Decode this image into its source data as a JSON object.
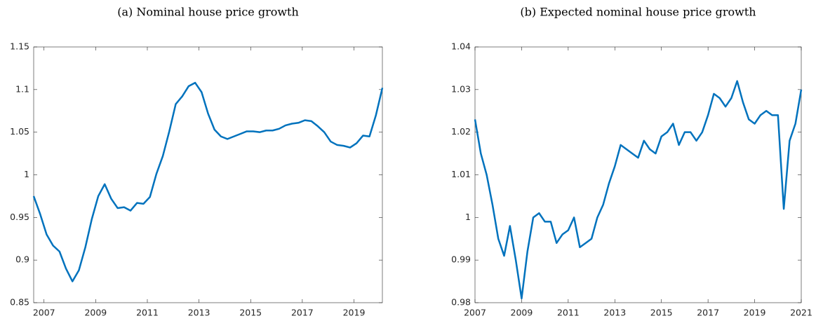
{
  "chart_data": [
    {
      "type": "line",
      "title": "(a) Nominal house price growth",
      "x": [
        2006.6,
        2006.85,
        2007.1,
        2007.35,
        2007.6,
        2007.85,
        2008.1,
        2008.35,
        2008.6,
        2008.85,
        2009.1,
        2009.35,
        2009.6,
        2009.85,
        2010.1,
        2010.35,
        2010.6,
        2010.85,
        2011.1,
        2011.35,
        2011.6,
        2011.85,
        2012.1,
        2012.35,
        2012.6,
        2012.85,
        2013.1,
        2013.35,
        2013.6,
        2013.85,
        2014.1,
        2014.35,
        2014.6,
        2014.85,
        2015.1,
        2015.35,
        2015.6,
        2015.85,
        2016.1,
        2016.35,
        2016.6,
        2016.85,
        2017.1,
        2017.35,
        2017.6,
        2017.85,
        2018.1,
        2018.35,
        2018.6,
        2018.85,
        2019.1,
        2019.35,
        2019.6,
        2019.85,
        2020.1
      ],
      "series": [
        {
          "color": "#0072bd",
          "values": [
            0.975,
            0.954,
            0.93,
            0.917,
            0.91,
            0.89,
            0.875,
            0.888,
            0.915,
            0.948,
            0.975,
            0.989,
            0.972,
            0.961,
            0.962,
            0.958,
            0.967,
            0.966,
            0.974,
            1.001,
            1.022,
            1.051,
            1.083,
            1.092,
            1.104,
            1.108,
            1.097,
            1.072,
            1.053,
            1.045,
            1.042,
            1.045,
            1.048,
            1.051,
            1.051,
            1.05,
            1.052,
            1.052,
            1.054,
            1.058,
            1.06,
            1.061,
            1.064,
            1.063,
            1.057,
            1.05,
            1.039,
            1.035,
            1.034,
            1.032,
            1.037,
            1.046,
            1.045,
            1.07,
            1.102
          ]
        }
      ],
      "xlim": [
        2006.6,
        2020.1
      ],
      "xticks": [
        2007,
        2009,
        2011,
        2013,
        2015,
        2017,
        2019
      ],
      "ylim": [
        0.85,
        1.15
      ],
      "yticks": [
        0.85,
        0.9,
        0.95,
        1,
        1.05,
        1.1,
        1.15
      ]
    },
    {
      "type": "line",
      "title": "(b) Expected nominal house price growth",
      "x": [
        2007,
        2007.25,
        2007.5,
        2007.75,
        2008,
        2008.25,
        2008.5,
        2008.75,
        2009,
        2009.25,
        2009.5,
        2009.75,
        2010,
        2010.25,
        2010.5,
        2010.75,
        2011,
        2011.25,
        2011.5,
        2011.75,
        2012,
        2012.25,
        2012.5,
        2012.75,
        2013,
        2013.25,
        2013.5,
        2013.75,
        2014,
        2014.25,
        2014.5,
        2014.75,
        2015,
        2015.25,
        2015.5,
        2015.75,
        2016,
        2016.25,
        2016.5,
        2016.75,
        2017,
        2017.25,
        2017.5,
        2017.75,
        2018,
        2018.25,
        2018.5,
        2018.75,
        2019,
        2019.25,
        2019.5,
        2019.75,
        2020,
        2020.25,
        2020.5,
        2020.75,
        2021
      ],
      "series": [
        {
          "color": "#0072bd",
          "values": [
            1.023,
            1.015,
            1.01,
            1.003,
            0.995,
            0.991,
            0.998,
            0.99,
            0.981,
            0.992,
            1.0,
            1.001,
            0.999,
            0.999,
            0.994,
            0.996,
            0.997,
            1.0,
            0.993,
            0.994,
            0.995,
            1.0,
            1.003,
            1.008,
            1.012,
            1.017,
            1.016,
            1.015,
            1.014,
            1.018,
            1.016,
            1.015,
            1.019,
            1.02,
            1.022,
            1.017,
            1.02,
            1.02,
            1.018,
            1.02,
            1.024,
            1.029,
            1.028,
            1.026,
            1.028,
            1.032,
            1.027,
            1.023,
            1.022,
            1.024,
            1.025,
            1.024,
            1.024,
            1.002,
            1.018,
            1.022,
            1.03
          ]
        }
      ],
      "xlim": [
        2007,
        2021
      ],
      "xticks": [
        2007,
        2009,
        2011,
        2013,
        2015,
        2017,
        2019,
        2021
      ],
      "ylim": [
        0.98,
        1.04
      ],
      "yticks": [
        0.98,
        0.99,
        1,
        1.01,
        1.02,
        1.03,
        1.04
      ]
    }
  ]
}
